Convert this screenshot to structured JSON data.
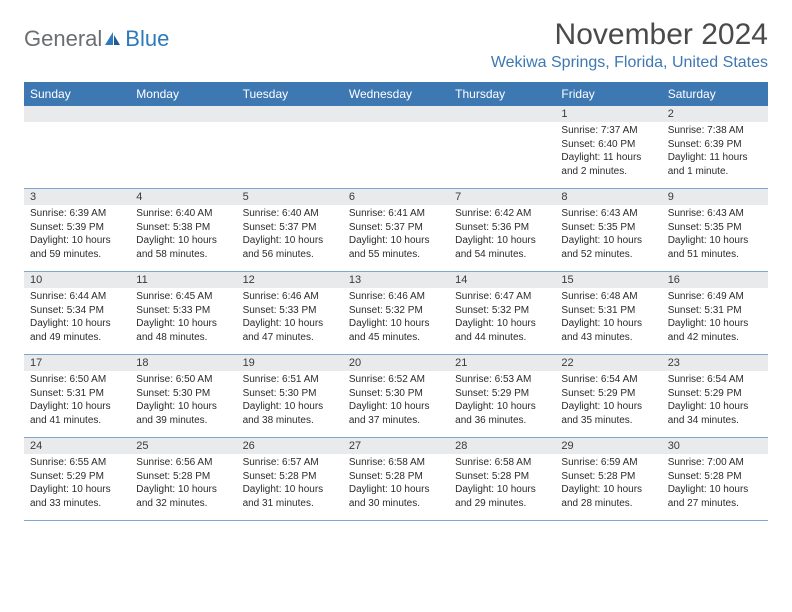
{
  "logo": {
    "gray": "General",
    "blue": "Blue"
  },
  "title": "November 2024",
  "location": "Wekiwa Springs, Florida, United States",
  "colors": {
    "header_bg": "#3e78b3",
    "header_text": "#ffffff",
    "location_text": "#3e78b3",
    "title_text": "#4a4a4a",
    "daynum_bg": "#e9eaeb",
    "body_text": "#2b2b2b",
    "rule": "#7da8cf"
  },
  "typography": {
    "title_fontsize": 30,
    "location_fontsize": 16,
    "header_fontsize": 12,
    "daynum_fontsize": 11,
    "body_fontsize": 10
  },
  "day_names": [
    "Sunday",
    "Monday",
    "Tuesday",
    "Wednesday",
    "Thursday",
    "Friday",
    "Saturday"
  ],
  "weeks": [
    [
      {
        "num": "",
        "sunrise": "",
        "sunset": "",
        "daylight": ""
      },
      {
        "num": "",
        "sunrise": "",
        "sunset": "",
        "daylight": ""
      },
      {
        "num": "",
        "sunrise": "",
        "sunset": "",
        "daylight": ""
      },
      {
        "num": "",
        "sunrise": "",
        "sunset": "",
        "daylight": ""
      },
      {
        "num": "",
        "sunrise": "",
        "sunset": "",
        "daylight": ""
      },
      {
        "num": "1",
        "sunrise": "Sunrise: 7:37 AM",
        "sunset": "Sunset: 6:40 PM",
        "daylight": "Daylight: 11 hours and 2 minutes."
      },
      {
        "num": "2",
        "sunrise": "Sunrise: 7:38 AM",
        "sunset": "Sunset: 6:39 PM",
        "daylight": "Daylight: 11 hours and 1 minute."
      }
    ],
    [
      {
        "num": "3",
        "sunrise": "Sunrise: 6:39 AM",
        "sunset": "Sunset: 5:39 PM",
        "daylight": "Daylight: 10 hours and 59 minutes."
      },
      {
        "num": "4",
        "sunrise": "Sunrise: 6:40 AM",
        "sunset": "Sunset: 5:38 PM",
        "daylight": "Daylight: 10 hours and 58 minutes."
      },
      {
        "num": "5",
        "sunrise": "Sunrise: 6:40 AM",
        "sunset": "Sunset: 5:37 PM",
        "daylight": "Daylight: 10 hours and 56 minutes."
      },
      {
        "num": "6",
        "sunrise": "Sunrise: 6:41 AM",
        "sunset": "Sunset: 5:37 PM",
        "daylight": "Daylight: 10 hours and 55 minutes."
      },
      {
        "num": "7",
        "sunrise": "Sunrise: 6:42 AM",
        "sunset": "Sunset: 5:36 PM",
        "daylight": "Daylight: 10 hours and 54 minutes."
      },
      {
        "num": "8",
        "sunrise": "Sunrise: 6:43 AM",
        "sunset": "Sunset: 5:35 PM",
        "daylight": "Daylight: 10 hours and 52 minutes."
      },
      {
        "num": "9",
        "sunrise": "Sunrise: 6:43 AM",
        "sunset": "Sunset: 5:35 PM",
        "daylight": "Daylight: 10 hours and 51 minutes."
      }
    ],
    [
      {
        "num": "10",
        "sunrise": "Sunrise: 6:44 AM",
        "sunset": "Sunset: 5:34 PM",
        "daylight": "Daylight: 10 hours and 49 minutes."
      },
      {
        "num": "11",
        "sunrise": "Sunrise: 6:45 AM",
        "sunset": "Sunset: 5:33 PM",
        "daylight": "Daylight: 10 hours and 48 minutes."
      },
      {
        "num": "12",
        "sunrise": "Sunrise: 6:46 AM",
        "sunset": "Sunset: 5:33 PM",
        "daylight": "Daylight: 10 hours and 47 minutes."
      },
      {
        "num": "13",
        "sunrise": "Sunrise: 6:46 AM",
        "sunset": "Sunset: 5:32 PM",
        "daylight": "Daylight: 10 hours and 45 minutes."
      },
      {
        "num": "14",
        "sunrise": "Sunrise: 6:47 AM",
        "sunset": "Sunset: 5:32 PM",
        "daylight": "Daylight: 10 hours and 44 minutes."
      },
      {
        "num": "15",
        "sunrise": "Sunrise: 6:48 AM",
        "sunset": "Sunset: 5:31 PM",
        "daylight": "Daylight: 10 hours and 43 minutes."
      },
      {
        "num": "16",
        "sunrise": "Sunrise: 6:49 AM",
        "sunset": "Sunset: 5:31 PM",
        "daylight": "Daylight: 10 hours and 42 minutes."
      }
    ],
    [
      {
        "num": "17",
        "sunrise": "Sunrise: 6:50 AM",
        "sunset": "Sunset: 5:31 PM",
        "daylight": "Daylight: 10 hours and 41 minutes."
      },
      {
        "num": "18",
        "sunrise": "Sunrise: 6:50 AM",
        "sunset": "Sunset: 5:30 PM",
        "daylight": "Daylight: 10 hours and 39 minutes."
      },
      {
        "num": "19",
        "sunrise": "Sunrise: 6:51 AM",
        "sunset": "Sunset: 5:30 PM",
        "daylight": "Daylight: 10 hours and 38 minutes."
      },
      {
        "num": "20",
        "sunrise": "Sunrise: 6:52 AM",
        "sunset": "Sunset: 5:30 PM",
        "daylight": "Daylight: 10 hours and 37 minutes."
      },
      {
        "num": "21",
        "sunrise": "Sunrise: 6:53 AM",
        "sunset": "Sunset: 5:29 PM",
        "daylight": "Daylight: 10 hours and 36 minutes."
      },
      {
        "num": "22",
        "sunrise": "Sunrise: 6:54 AM",
        "sunset": "Sunset: 5:29 PM",
        "daylight": "Daylight: 10 hours and 35 minutes."
      },
      {
        "num": "23",
        "sunrise": "Sunrise: 6:54 AM",
        "sunset": "Sunset: 5:29 PM",
        "daylight": "Daylight: 10 hours and 34 minutes."
      }
    ],
    [
      {
        "num": "24",
        "sunrise": "Sunrise: 6:55 AM",
        "sunset": "Sunset: 5:29 PM",
        "daylight": "Daylight: 10 hours and 33 minutes."
      },
      {
        "num": "25",
        "sunrise": "Sunrise: 6:56 AM",
        "sunset": "Sunset: 5:28 PM",
        "daylight": "Daylight: 10 hours and 32 minutes."
      },
      {
        "num": "26",
        "sunrise": "Sunrise: 6:57 AM",
        "sunset": "Sunset: 5:28 PM",
        "daylight": "Daylight: 10 hours and 31 minutes."
      },
      {
        "num": "27",
        "sunrise": "Sunrise: 6:58 AM",
        "sunset": "Sunset: 5:28 PM",
        "daylight": "Daylight: 10 hours and 30 minutes."
      },
      {
        "num": "28",
        "sunrise": "Sunrise: 6:58 AM",
        "sunset": "Sunset: 5:28 PM",
        "daylight": "Daylight: 10 hours and 29 minutes."
      },
      {
        "num": "29",
        "sunrise": "Sunrise: 6:59 AM",
        "sunset": "Sunset: 5:28 PM",
        "daylight": "Daylight: 10 hours and 28 minutes."
      },
      {
        "num": "30",
        "sunrise": "Sunrise: 7:00 AM",
        "sunset": "Sunset: 5:28 PM",
        "daylight": "Daylight: 10 hours and 27 minutes."
      }
    ]
  ]
}
